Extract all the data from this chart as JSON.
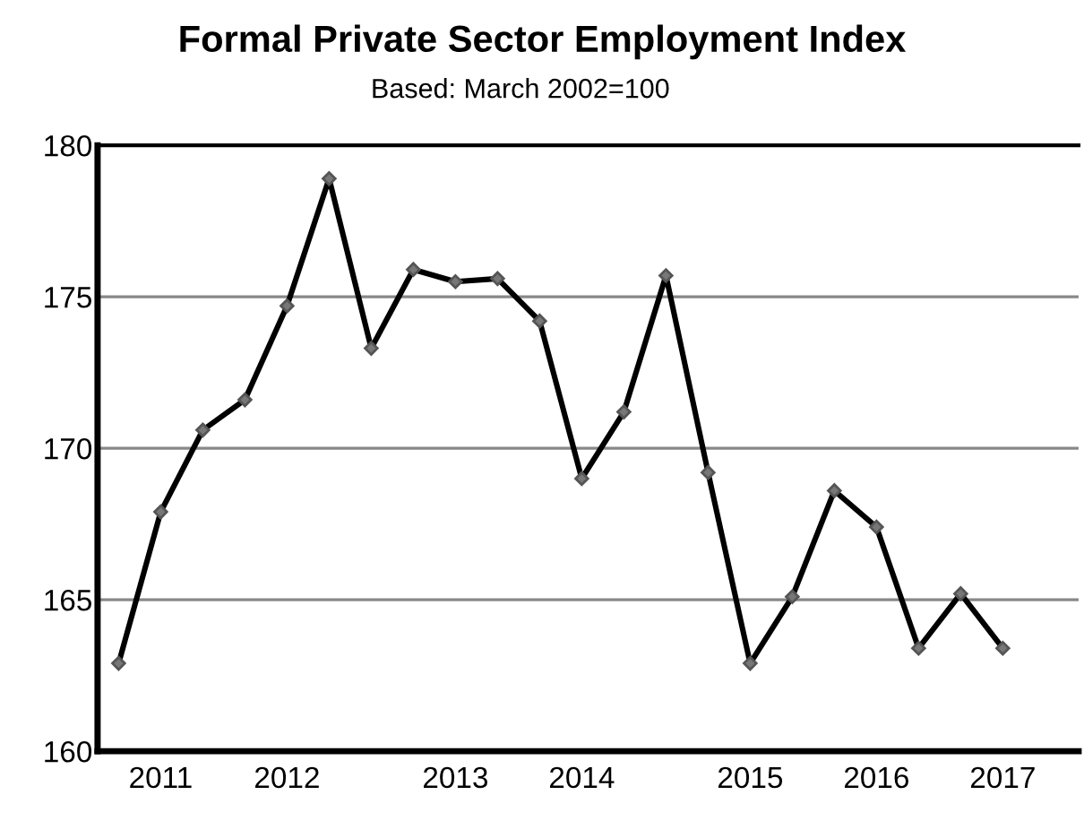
{
  "chart_data": {
    "type": "line",
    "title": "Formal Private Sector Employment Index",
    "subtitle": "Based: March 2002=100",
    "categories": [
      null,
      "2011",
      null,
      null,
      "2012",
      null,
      null,
      null,
      "2013",
      null,
      null,
      "2014",
      null,
      null,
      null,
      "2015",
      null,
      null,
      "2016",
      null,
      null,
      "2017"
    ],
    "series": [
      {
        "color": "#000000",
        "values": [
          162.9,
          167.9,
          170.6,
          171.6,
          174.7,
          178.9,
          173.3,
          175.9,
          175.5,
          175.6,
          174.2,
          169.0,
          171.2,
          175.7,
          169.2,
          162.9,
          165.1,
          168.6,
          167.4,
          163.4,
          165.2,
          163.4
        ]
      }
    ],
    "ylim": [
      160,
      180
    ],
    "yticks": [
      160,
      165,
      170,
      175,
      180
    ],
    "grid": "y",
    "marker": "diamond",
    "line_style": "solid"
  }
}
